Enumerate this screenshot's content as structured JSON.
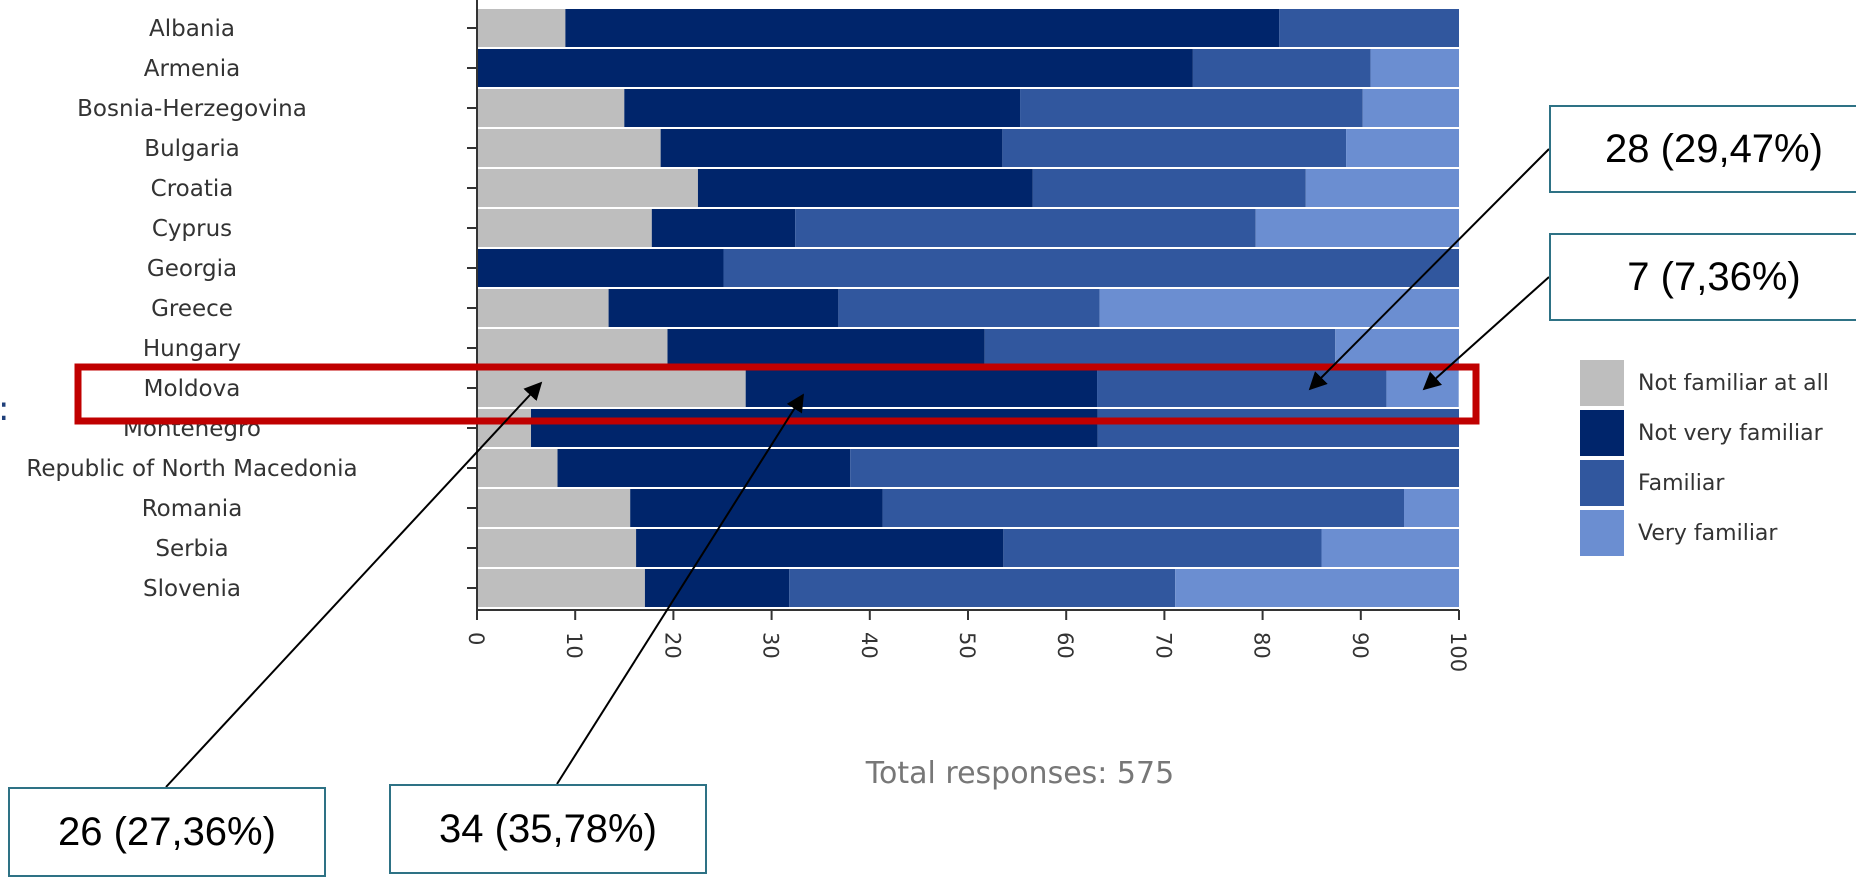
{
  "chart_data": {
    "type": "bar",
    "orientation": "horizontal",
    "stacked": true,
    "categories": [
      "Albania",
      "Armenia",
      "Bosnia-Herzegovina",
      "Bulgaria",
      "Croatia",
      "Cyprus",
      "Georgia",
      "Greece",
      "Hungary",
      "Moldova",
      "Montenegro",
      "Republic of North Macedonia",
      "Romania",
      "Serbia",
      "Slovenia"
    ],
    "series": [
      {
        "name": "Not familiar at all",
        "color": "#bebebe",
        "values": [
          9,
          0,
          15,
          18.7,
          22.5,
          17.8,
          0,
          13.4,
          19.4,
          27.36,
          5.5,
          8.2,
          15.6,
          16.2,
          17.1
        ]
      },
      {
        "name": "Not very familiar",
        "color": "#00256b",
        "values": [
          72.7,
          72.9,
          40.3,
          34.8,
          34.1,
          14.6,
          25.1,
          23.4,
          32.3,
          35.78,
          57.7,
          29.8,
          25.7,
          37.4,
          14.7
        ]
      },
      {
        "name": "Familiar",
        "color": "#31579e",
        "values": [
          18.3,
          18.1,
          34.9,
          35,
          27.8,
          46.9,
          74.9,
          26.6,
          35.7,
          29.47,
          36.8,
          62,
          53.1,
          32.4,
          39.3
        ]
      },
      {
        "name": "Very familiar",
        "color": "#6b8ed1",
        "values": [
          0,
          9,
          9.8,
          11.5,
          15.6,
          20.7,
          0,
          36.6,
          12.6,
          7.36,
          0,
          0,
          5.6,
          14,
          28.9
        ]
      }
    ],
    "xlim": [
      0,
      100
    ],
    "xticks": [
      "0",
      "10",
      "20",
      "30",
      "40",
      "50",
      "60",
      "70",
      "80",
      "90",
      "100"
    ],
    "legend_position": "right",
    "highlight": "Moldova",
    "total_text": "Total responses: 575",
    "annotations": [
      "28 (29,47%)",
      "7 (7,36%)",
      "26 (27,36%)",
      "34 (35,78%)"
    ]
  }
}
